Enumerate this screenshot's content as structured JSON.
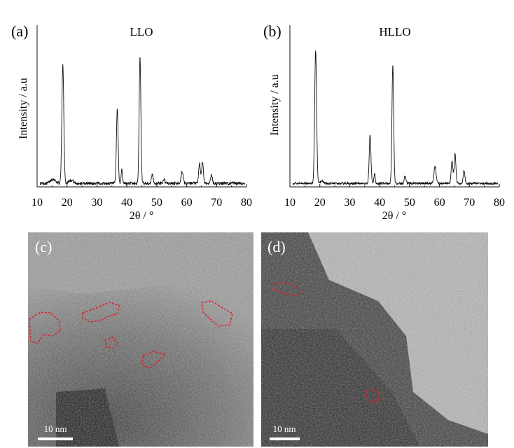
{
  "chart_data": [
    {
      "type": "line",
      "panel": "(a)",
      "title": "LLO",
      "xlabel": "2θ / °",
      "ylabel": "Intensity / a.u",
      "xlim": [
        10,
        80
      ],
      "xticks": [
        10,
        20,
        30,
        40,
        50,
        60,
        70,
        80
      ],
      "yaxis_ticks": false,
      "grid": false,
      "peaks": [
        {
          "x": 15.3,
          "y": 3,
          "w": 1.2
        },
        {
          "x": 18.6,
          "y": 83,
          "w": 0.45
        },
        {
          "x": 20.8,
          "y": 2,
          "w": 0.6
        },
        {
          "x": 21.8,
          "y": 2,
          "w": 0.6
        },
        {
          "x": 36.8,
          "y": 52,
          "w": 0.4
        },
        {
          "x": 38.3,
          "y": 10,
          "w": 0.3
        },
        {
          "x": 44.4,
          "y": 88,
          "w": 0.4
        },
        {
          "x": 48.5,
          "y": 6,
          "w": 0.4
        },
        {
          "x": 52.4,
          "y": 3,
          "w": 0.4
        },
        {
          "x": 58.5,
          "y": 8,
          "w": 0.5
        },
        {
          "x": 64.3,
          "y": 14,
          "w": 0.4
        },
        {
          "x": 65.3,
          "y": 15,
          "w": 0.4
        },
        {
          "x": 68.3,
          "y": 6,
          "w": 0.4
        }
      ],
      "noise": 2
    },
    {
      "type": "line",
      "panel": "(b)",
      "title": "HLLO",
      "xlabel": "2θ / °",
      "ylabel": "Intensity / a.u",
      "xlim": [
        10,
        80
      ],
      "xticks": [
        10,
        20,
        30,
        40,
        50,
        60,
        70,
        80
      ],
      "yaxis_ticks": false,
      "grid": false,
      "peaks": [
        {
          "x": 18.6,
          "y": 92,
          "w": 0.45
        },
        {
          "x": 20.8,
          "y": 2,
          "w": 0.6
        },
        {
          "x": 36.8,
          "y": 34,
          "w": 0.4
        },
        {
          "x": 38.3,
          "y": 7,
          "w": 0.3
        },
        {
          "x": 44.4,
          "y": 82,
          "w": 0.4
        },
        {
          "x": 48.5,
          "y": 5,
          "w": 0.4
        },
        {
          "x": 58.5,
          "y": 12,
          "w": 0.5
        },
        {
          "x": 64.2,
          "y": 16,
          "w": 0.4
        },
        {
          "x": 65.2,
          "y": 21,
          "w": 0.4
        },
        {
          "x": 68.2,
          "y": 9,
          "w": 0.4
        }
      ],
      "noise": 1.5
    }
  ],
  "micrographs": [
    {
      "label": "(c)",
      "scalebar": "10 nm"
    },
    {
      "label": "(d)",
      "scalebar": "10 nm"
    }
  ],
  "colors": {
    "line": "#111111",
    "highlight": "#e0202a"
  }
}
